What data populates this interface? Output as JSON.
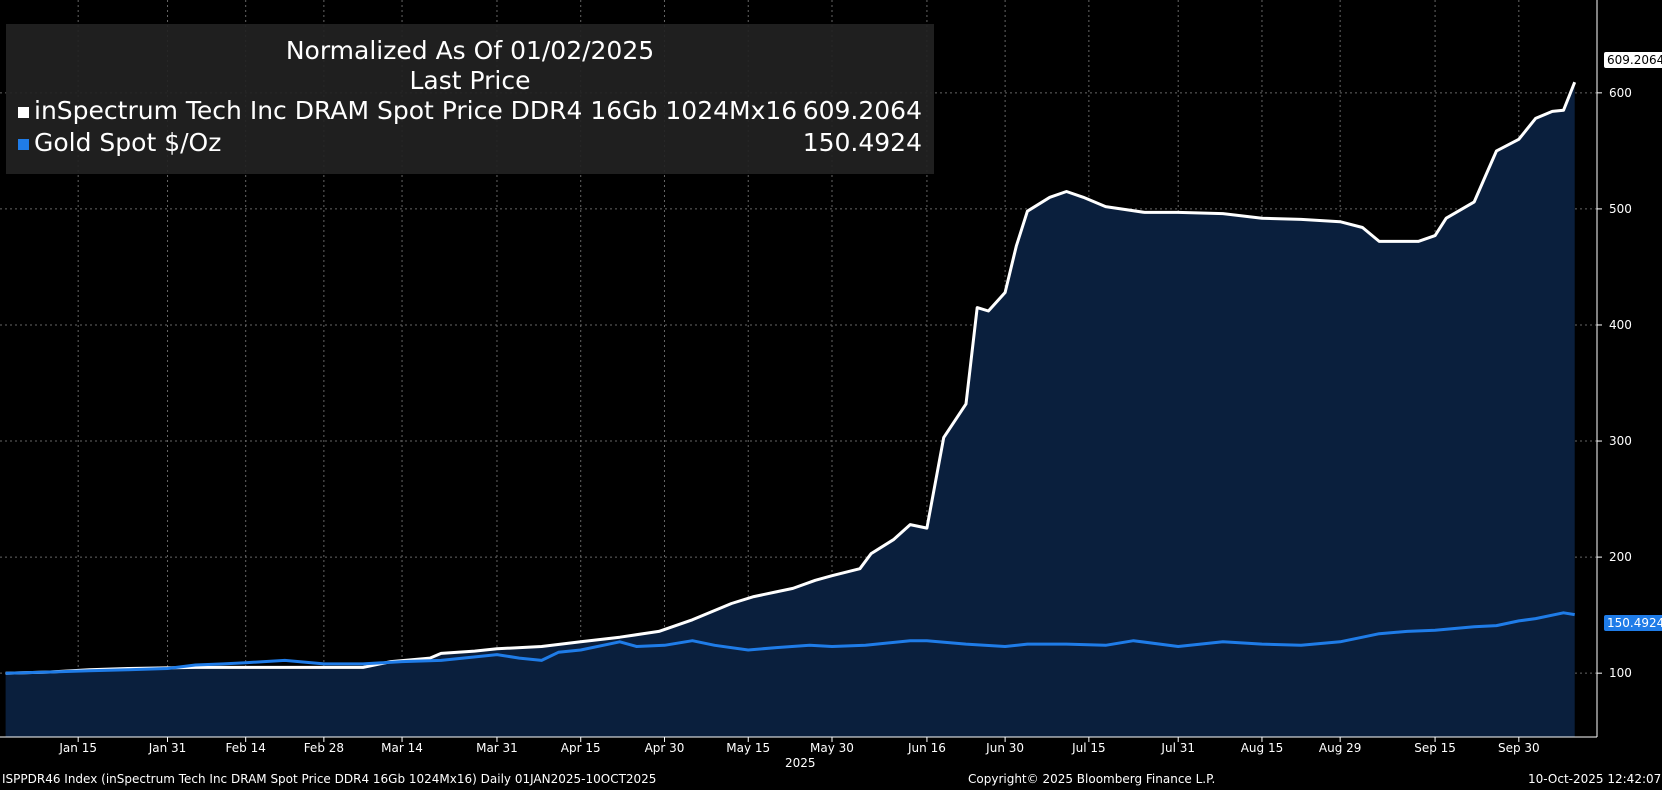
{
  "legend": {
    "title_line1": "Normalized As Of 01/02/2025",
    "title_line2": "Last Price",
    "series": [
      {
        "name": "inSpectrum Tech Inc DRAM Spot Price DDR4 16Gb 1024Mx16",
        "value": "609.2064",
        "color": "#ffffff"
      },
      {
        "name": "Gold Spot $/Oz",
        "value": "150.4924",
        "color": "#1f7ce8"
      }
    ]
  },
  "axis": {
    "year_label": "2025"
  },
  "footer": {
    "left": "ISPPDR46 Index (inSpectrum Tech Inc DRAM Spot Price DDR4 16Gb 1024Mx16) Daily 01JAN2025-10OCT2025",
    "center": "Copyright© 2025 Bloomberg Finance L.P.",
    "right": "10-Oct-2025 12:42:07"
  },
  "last_tags": {
    "dram": "609.2064",
    "gold": "150.4924"
  },
  "colors": {
    "background": "#000000",
    "area_fill": "#0a1f3d",
    "dram_line": "#ffffff",
    "gold_line": "#1f7ce8",
    "grid": "#666666"
  },
  "chart_data": {
    "type": "line",
    "x_axis": "date",
    "xlim": [
      "2025-01-01",
      "2025-10-14"
    ],
    "ylim": [
      45,
      680
    ],
    "y_ticks": [
      100,
      200,
      300,
      400,
      500,
      600
    ],
    "x_tick_labels": [
      {
        "date": "2025-01-15",
        "label": "Jan 15"
      },
      {
        "date": "2025-01-31",
        "label": "Jan 31"
      },
      {
        "date": "2025-02-14",
        "label": "Feb 14"
      },
      {
        "date": "2025-02-28",
        "label": "Feb 28"
      },
      {
        "date": "2025-03-14",
        "label": "Mar 14"
      },
      {
        "date": "2025-03-31",
        "label": "Mar 31"
      },
      {
        "date": "2025-04-15",
        "label": "Apr 15"
      },
      {
        "date": "2025-04-30",
        "label": "Apr 30"
      },
      {
        "date": "2025-05-15",
        "label": "May 15"
      },
      {
        "date": "2025-05-30",
        "label": "May 30"
      },
      {
        "date": "2025-06-16",
        "label": "Jun 16"
      },
      {
        "date": "2025-06-30",
        "label": "Jun 30"
      },
      {
        "date": "2025-07-15",
        "label": "Jul 15"
      },
      {
        "date": "2025-07-31",
        "label": "Jul 31"
      },
      {
        "date": "2025-08-15",
        "label": "Aug 15"
      },
      {
        "date": "2025-08-29",
        "label": "Aug 29"
      },
      {
        "date": "2025-09-15",
        "label": "Sep 15"
      },
      {
        "date": "2025-09-30",
        "label": "Sep 30"
      }
    ],
    "grid": true,
    "legend_position": "top-left",
    "series": [
      {
        "name": "inSpectrum Tech Inc DRAM Spot Price DDR4 16Gb 1024Mx16",
        "color": "#ffffff",
        "area": true,
        "last_value": 609.2064,
        "points": [
          [
            "2025-01-02",
            100
          ],
          [
            "2025-01-10",
            101
          ],
          [
            "2025-01-17",
            103
          ],
          [
            "2025-01-24",
            104
          ],
          [
            "2025-02-05",
            105
          ],
          [
            "2025-02-15",
            105
          ],
          [
            "2025-02-25",
            105
          ],
          [
            "2025-03-07",
            105
          ],
          [
            "2025-03-12",
            110
          ],
          [
            "2025-03-19",
            113
          ],
          [
            "2025-03-21",
            117
          ],
          [
            "2025-03-27",
            119
          ],
          [
            "2025-03-31",
            121
          ],
          [
            "2025-04-08",
            123
          ],
          [
            "2025-04-15",
            127
          ],
          [
            "2025-04-22",
            131
          ],
          [
            "2025-04-29",
            136
          ],
          [
            "2025-05-05",
            146
          ],
          [
            "2025-05-12",
            160
          ],
          [
            "2025-05-16",
            166
          ],
          [
            "2025-05-20",
            170
          ],
          [
            "2025-05-23",
            173
          ],
          [
            "2025-05-27",
            180
          ],
          [
            "2025-05-30",
            184
          ],
          [
            "2025-06-04",
            190
          ],
          [
            "2025-06-06",
            203
          ],
          [
            "2025-06-10",
            215
          ],
          [
            "2025-06-13",
            228
          ],
          [
            "2025-06-16",
            225
          ],
          [
            "2025-06-19",
            303
          ],
          [
            "2025-06-23",
            332
          ],
          [
            "2025-06-25",
            415
          ],
          [
            "2025-06-27",
            412
          ],
          [
            "2025-06-30",
            428
          ],
          [
            "2025-07-02",
            468
          ],
          [
            "2025-07-04",
            498
          ],
          [
            "2025-07-08",
            510
          ],
          [
            "2025-07-11",
            515
          ],
          [
            "2025-07-14",
            510
          ],
          [
            "2025-07-18",
            502
          ],
          [
            "2025-07-25",
            497
          ],
          [
            "2025-07-31",
            497
          ],
          [
            "2025-08-08",
            496
          ],
          [
            "2025-08-15",
            492
          ],
          [
            "2025-08-22",
            491
          ],
          [
            "2025-08-29",
            489
          ],
          [
            "2025-09-02",
            484
          ],
          [
            "2025-09-05",
            472
          ],
          [
            "2025-09-12",
            472
          ],
          [
            "2025-09-15",
            477
          ],
          [
            "2025-09-17",
            492
          ],
          [
            "2025-09-22",
            506
          ],
          [
            "2025-09-24",
            528
          ],
          [
            "2025-09-26",
            550
          ],
          [
            "2025-09-30",
            560
          ],
          [
            "2025-10-03",
            578
          ],
          [
            "2025-10-06",
            584
          ],
          [
            "2025-10-08",
            585
          ],
          [
            "2025-10-10",
            609.2064
          ]
        ]
      },
      {
        "name": "Gold Spot $/Oz",
        "color": "#1f7ce8",
        "area": false,
        "last_value": 150.4924,
        "points": [
          [
            "2025-01-02",
            100
          ],
          [
            "2025-01-10",
            101
          ],
          [
            "2025-01-17",
            102
          ],
          [
            "2025-01-24",
            103
          ],
          [
            "2025-01-31",
            104
          ],
          [
            "2025-02-05",
            107
          ],
          [
            "2025-02-10",
            108
          ],
          [
            "2025-02-14",
            109
          ],
          [
            "2025-02-21",
            111
          ],
          [
            "2025-02-28",
            108
          ],
          [
            "2025-03-07",
            108
          ],
          [
            "2025-03-14",
            110
          ],
          [
            "2025-03-21",
            111
          ],
          [
            "2025-03-31",
            116
          ],
          [
            "2025-04-04",
            113
          ],
          [
            "2025-04-08",
            111
          ],
          [
            "2025-04-11",
            118
          ],
          [
            "2025-04-15",
            120
          ],
          [
            "2025-04-22",
            127
          ],
          [
            "2025-04-25",
            123
          ],
          [
            "2025-04-30",
            124
          ],
          [
            "2025-05-05",
            128
          ],
          [
            "2025-05-09",
            124
          ],
          [
            "2025-05-15",
            120
          ],
          [
            "2025-05-20",
            122
          ],
          [
            "2025-05-26",
            124
          ],
          [
            "2025-05-30",
            123
          ],
          [
            "2025-06-05",
            124
          ],
          [
            "2025-06-13",
            128
          ],
          [
            "2025-06-16",
            128
          ],
          [
            "2025-06-23",
            125
          ],
          [
            "2025-06-30",
            123
          ],
          [
            "2025-07-04",
            125
          ],
          [
            "2025-07-11",
            125
          ],
          [
            "2025-07-18",
            124
          ],
          [
            "2025-07-23",
            128
          ],
          [
            "2025-07-31",
            123
          ],
          [
            "2025-08-08",
            127
          ],
          [
            "2025-08-15",
            125
          ],
          [
            "2025-08-22",
            124
          ],
          [
            "2025-08-29",
            127
          ],
          [
            "2025-09-02",
            131
          ],
          [
            "2025-09-05",
            134
          ],
          [
            "2025-09-10",
            136
          ],
          [
            "2025-09-15",
            137
          ],
          [
            "2025-09-22",
            140
          ],
          [
            "2025-09-26",
            141
          ],
          [
            "2025-09-30",
            145
          ],
          [
            "2025-10-03",
            147
          ],
          [
            "2025-10-08",
            152
          ],
          [
            "2025-10-10",
            150.4924
          ]
        ]
      }
    ]
  }
}
